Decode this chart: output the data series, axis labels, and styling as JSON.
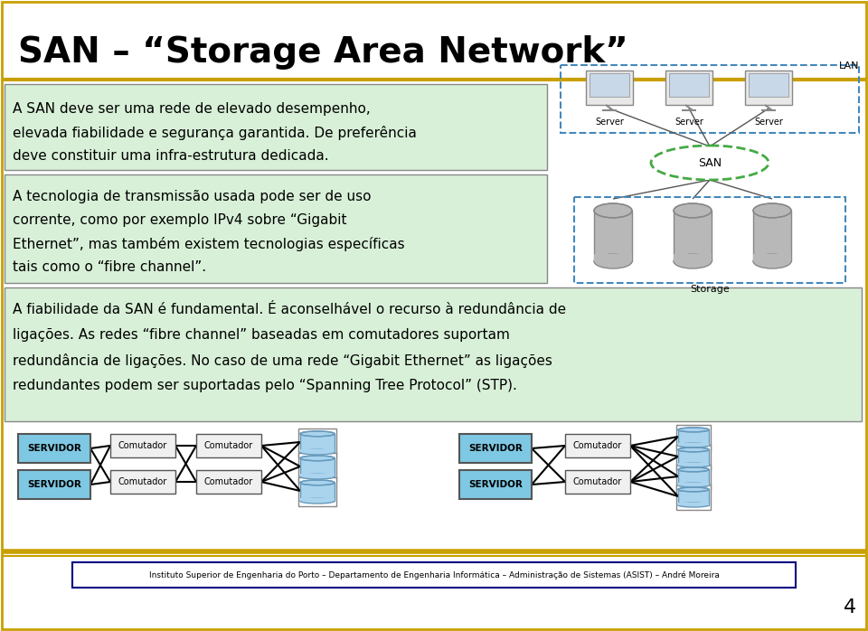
{
  "title": "SAN – “Storage Area Network”",
  "text_block1_lines": [
    "A SAN deve ser uma rede de elevado desempenho,",
    "elevada fiabilidade e segurança garantida. De preferência",
    "deve constituir uma infra-estrutura dedicada."
  ],
  "text_block2_lines": [
    "A tecnologia de transmissão usada pode ser de uso",
    "corrente, como por exemplo IPv4 sobre “Gigabit",
    "Ethernet”, mas também existem tecnologias específicas",
    "tais como o “fibre channel”."
  ],
  "text_block3_lines": [
    "A fiabilidade da SAN é fundamental. É aconselhável o recurso à redundância de",
    "ligações. As redes “fibre channel” baseadas em comutadores suportam",
    "redundância de ligações. No caso de uma rede “Gigabit Ethernet” as ligações",
    "redundantes podem ser suportadas pelo “Spanning Tree Protocol” (STP)."
  ],
  "footer_text": "Instituto Superior de Engenharia do Porto – Departamento de Engenharia Informática – Administração de Sistemas (ASIST) – André Moreira",
  "page_number": "4",
  "bg_color": "#ffffff",
  "green_bg": "#d8f0d8",
  "box_border": "#888888",
  "servidor_color": "#7ec8e3",
  "comutador_color": "#f0f0f0",
  "storage_fill": "#aad4ee",
  "storage_edge": "#6699bb",
  "gold_color": "#c8a000",
  "footer_bg": "#ffffff",
  "footer_border": "#000080",
  "title_color": "#000000",
  "text_color": "#000000",
  "border_color": "#c8a000",
  "lan_border": "#4488bb",
  "san_oval_color": "#44aa44"
}
